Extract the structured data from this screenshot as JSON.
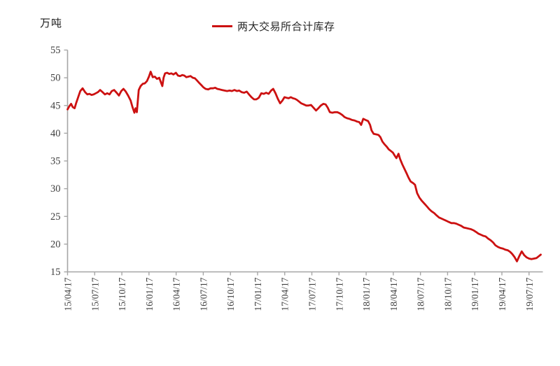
{
  "y_axis_unit_label": "万吨",
  "legend": {
    "series_label": "两大交易所合计库存",
    "position": "top-center"
  },
  "chart_data": {
    "type": "line",
    "title": "",
    "series_name": "两大交易所合计库存",
    "x_unit": "weeks since 15/04/17 (weekly data, 13 weeks per tick interval)",
    "x_tick_labels": [
      "15/04/17",
      "15/07/17",
      "15/10/17",
      "16/01/17",
      "16/04/17",
      "16/07/17",
      "16/10/17",
      "17/01/17",
      "17/04/17",
      "17/07/17",
      "17/10/17",
      "18/01/17",
      "18/04/17",
      "18/07/17",
      "18/10/17",
      "19/01/17",
      "19/04/17",
      "19/07/17"
    ],
    "y_ticks": [
      15,
      20,
      25,
      30,
      35,
      40,
      45,
      50,
      55
    ],
    "ylim": [
      15,
      55
    ],
    "ylabel": "万吨",
    "grid": false,
    "legend_position": "top-center",
    "line_color": "#cc1111",
    "axis_color": "#a6a6a6",
    "tick_label_color": "#404040",
    "points": [
      [
        0,
        44.3
      ],
      [
        0.9,
        44.9
      ],
      [
        1.7,
        45.3
      ],
      [
        2.5,
        44.7
      ],
      [
        3.4,
        44.5
      ],
      [
        4.1,
        45.4
      ],
      [
        5,
        46.4
      ],
      [
        6.1,
        47.6
      ],
      [
        7.2,
        48.1
      ],
      [
        8.4,
        47.4
      ],
      [
        9.5,
        47
      ],
      [
        10.5,
        47.1
      ],
      [
        11.5,
        46.9
      ],
      [
        12.5,
        47
      ],
      [
        13.5,
        47.2
      ],
      [
        14.5,
        47.4
      ],
      [
        15.6,
        47.8
      ],
      [
        16.8,
        47.4
      ],
      [
        17.9,
        47
      ],
      [
        19,
        47.2
      ],
      [
        20.1,
        47
      ],
      [
        21.2,
        47.6
      ],
      [
        22.3,
        47.8
      ],
      [
        23.5,
        47.3
      ],
      [
        24.6,
        46.8
      ],
      [
        25.7,
        47.6
      ],
      [
        26.8,
        48
      ],
      [
        27.9,
        47.5
      ],
      [
        29,
        46.8
      ],
      [
        30.2,
        45.9
      ],
      [
        31.1,
        44.7
      ],
      [
        32,
        43.7
      ],
      [
        32.6,
        44.5
      ],
      [
        33.2,
        43.8
      ],
      [
        34.1,
        47.8
      ],
      [
        35,
        48.5
      ],
      [
        36,
        48.9
      ],
      [
        37,
        49
      ],
      [
        38,
        49.4
      ],
      [
        39,
        50.2
      ],
      [
        39.8,
        51.1
      ],
      [
        40.8,
        50.1
      ],
      [
        41.8,
        50.2
      ],
      [
        42.8,
        49.8
      ],
      [
        43.9,
        50
      ],
      [
        44.9,
        49
      ],
      [
        45.4,
        48.5
      ],
      [
        46,
        50
      ],
      [
        46.7,
        50.8
      ],
      [
        47.7,
        50.9
      ],
      [
        48.7,
        50.7
      ],
      [
        49.7,
        50.8
      ],
      [
        50.7,
        50.6
      ],
      [
        51.9,
        50.9
      ],
      [
        52.9,
        50.4
      ],
      [
        53.9,
        50.3
      ],
      [
        54.9,
        50.5
      ],
      [
        55.9,
        50.4
      ],
      [
        56.9,
        50.1
      ],
      [
        57.9,
        50.2
      ],
      [
        58.9,
        50.3
      ],
      [
        60,
        50
      ],
      [
        61,
        49.9
      ],
      [
        62,
        49.5
      ],
      [
        63,
        49.1
      ],
      [
        64,
        48.7
      ],
      [
        65,
        48.3
      ],
      [
        66.1,
        48
      ],
      [
        67.3,
        47.9
      ],
      [
        68.5,
        48.1
      ],
      [
        69.7,
        48.1
      ],
      [
        70.7,
        48.2
      ],
      [
        71.7,
        48
      ],
      [
        72.9,
        47.9
      ],
      [
        74,
        47.8
      ],
      [
        75.2,
        47.7
      ],
      [
        76.4,
        47.6
      ],
      [
        77.6,
        47.7
      ],
      [
        78.7,
        47.6
      ],
      [
        79.9,
        47.8
      ],
      [
        81.1,
        47.6
      ],
      [
        82.2,
        47.7
      ],
      [
        83.4,
        47.4
      ],
      [
        84.6,
        47.3
      ],
      [
        85.8,
        47.5
      ],
      [
        86.9,
        47
      ],
      [
        88.1,
        46.5
      ],
      [
        89.3,
        46.1
      ],
      [
        90.4,
        46.1
      ],
      [
        91.6,
        46.4
      ],
      [
        92.8,
        47.2
      ],
      [
        94,
        47.1
      ],
      [
        95.1,
        47.3
      ],
      [
        96.3,
        47.1
      ],
      [
        97.5,
        47.7
      ],
      [
        98.5,
        48
      ],
      [
        99.6,
        47.2
      ],
      [
        100.7,
        46.2
      ],
      [
        101.8,
        45.4
      ],
      [
        102.9,
        45.9
      ],
      [
        103.9,
        46.5
      ],
      [
        104.9,
        46.4
      ],
      [
        105.9,
        46.3
      ],
      [
        106.9,
        46.5
      ],
      [
        107.9,
        46.3
      ],
      [
        108.9,
        46.2
      ],
      [
        109.9,
        46
      ],
      [
        110.9,
        45.7
      ],
      [
        111.9,
        45.4
      ],
      [
        113.1,
        45.2
      ],
      [
        114.3,
        45
      ],
      [
        115.4,
        45
      ],
      [
        116.6,
        45.1
      ],
      [
        117.8,
        44.6
      ],
      [
        119,
        44.1
      ],
      [
        120.1,
        44.5
      ],
      [
        121.3,
        45
      ],
      [
        122.5,
        45.3
      ],
      [
        123.6,
        45.2
      ],
      [
        124.6,
        44.6
      ],
      [
        125.6,
        43.8
      ],
      [
        126.8,
        43.7
      ],
      [
        128,
        43.8
      ],
      [
        129.2,
        43.8
      ],
      [
        130.3,
        43.6
      ],
      [
        131.5,
        43.3
      ],
      [
        132.7,
        42.9
      ],
      [
        133.9,
        42.7
      ],
      [
        135,
        42.6
      ],
      [
        136.2,
        42.4
      ],
      [
        137.4,
        42.3
      ],
      [
        138.6,
        42.1
      ],
      [
        139.7,
        42
      ],
      [
        140.6,
        41.5
      ],
      [
        141.6,
        42.6
      ],
      [
        142.7,
        42.4
      ],
      [
        143.9,
        42.2
      ],
      [
        144.9,
        41.5
      ],
      [
        145.6,
        40.5
      ],
      [
        146.6,
        39.9
      ],
      [
        147.8,
        39.8
      ],
      [
        148.9,
        39.7
      ],
      [
        149.8,
        39.3
      ],
      [
        150.8,
        38.5
      ],
      [
        151.8,
        38
      ],
      [
        152.8,
        37.6
      ],
      [
        153.8,
        37.1
      ],
      [
        154.8,
        36.8
      ],
      [
        155.8,
        36.5
      ],
      [
        156.8,
        35.9
      ],
      [
        157.5,
        35.5
      ],
      [
        158.5,
        36.3
      ],
      [
        159.3,
        35.3
      ],
      [
        160.3,
        34.4
      ],
      [
        161.3,
        33.6
      ],
      [
        162.3,
        32.8
      ],
      [
        163.3,
        32
      ],
      [
        164.3,
        31.3
      ],
      [
        165.5,
        31
      ],
      [
        166.4,
        30.7
      ],
      [
        167.4,
        29.2
      ],
      [
        168.5,
        28.4
      ],
      [
        169.7,
        27.8
      ],
      [
        170.9,
        27.3
      ],
      [
        172.1,
        26.8
      ],
      [
        173.2,
        26.3
      ],
      [
        174.4,
        25.9
      ],
      [
        175.6,
        25.6
      ],
      [
        176.7,
        25.2
      ],
      [
        177.9,
        24.8
      ],
      [
        179.1,
        24.6
      ],
      [
        180.3,
        24.4
      ],
      [
        181.5,
        24.2
      ],
      [
        182.6,
        24
      ],
      [
        183.8,
        23.8
      ],
      [
        185,
        23.8
      ],
      [
        186.2,
        23.7
      ],
      [
        187.3,
        23.5
      ],
      [
        188.5,
        23.3
      ],
      [
        189.7,
        23
      ],
      [
        190.9,
        22.9
      ],
      [
        192,
        22.8
      ],
      [
        193.2,
        22.7
      ],
      [
        194.4,
        22.5
      ],
      [
        195.6,
        22.2
      ],
      [
        196.7,
        21.9
      ],
      [
        197.9,
        21.7
      ],
      [
        199.1,
        21.5
      ],
      [
        200.2,
        21.4
      ],
      [
        201.4,
        21
      ],
      [
        202.6,
        20.7
      ],
      [
        203.8,
        20.3
      ],
      [
        204.9,
        19.8
      ],
      [
        206.1,
        19.5
      ],
      [
        207.3,
        19.3
      ],
      [
        208.5,
        19.2
      ],
      [
        209.6,
        19
      ],
      [
        210.8,
        18.9
      ],
      [
        212,
        18.6
      ],
      [
        213,
        18.2
      ],
      [
        214,
        17.7
      ],
      [
        215.2,
        16.9
      ],
      [
        216.3,
        17.8
      ],
      [
        217.5,
        18.7
      ],
      [
        218.7,
        18
      ],
      [
        219.9,
        17.6
      ],
      [
        221,
        17.4
      ],
      [
        222.2,
        17.3
      ],
      [
        223.4,
        17.4
      ],
      [
        224.6,
        17.5
      ],
      [
        225.6,
        17.8
      ],
      [
        226.6,
        18.1
      ]
    ]
  }
}
